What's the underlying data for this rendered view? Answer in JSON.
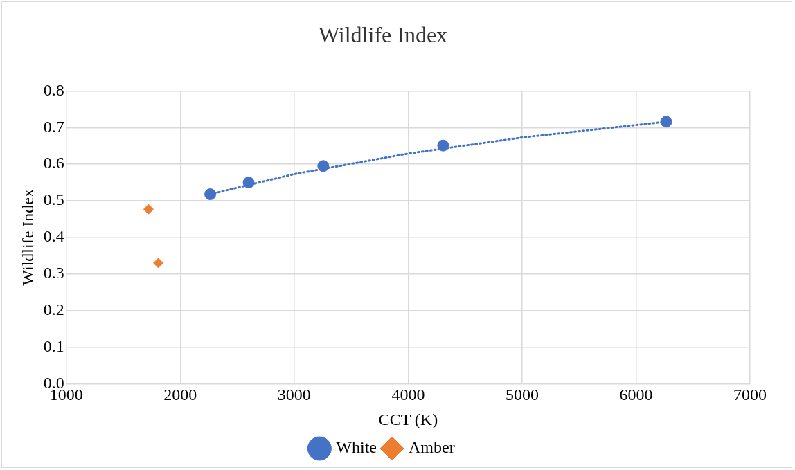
{
  "chart_data": {
    "type": "scatter",
    "title": "Wildlife Index",
    "xlabel": "CCT (K)",
    "ylabel": "Wildlife Index",
    "series": [
      {
        "name": "White",
        "color": "#4472c4",
        "marker": "circle",
        "x": [
          2263,
          2600,
          3255,
          4307,
          6265
        ],
        "values": [
          0.518,
          0.55,
          0.595,
          0.651,
          0.716
        ]
      },
      {
        "name": "Amber",
        "color": "#ed7d31",
        "marker": "diamond",
        "x": [
          1721,
          1807
        ],
        "values": [
          0.477,
          0.33
        ]
      },
      {
        "type": "line",
        "color": "#4472c4",
        "marker": "none",
        "line_style": "dotted",
        "x": [
          2263,
          3000,
          4000,
          5000,
          6265
        ],
        "values": [
          0.518,
          0.573,
          0.629,
          0.673,
          0.716
        ]
      }
    ],
    "xlim": [
      1000,
      7000
    ],
    "xticks": [
      1000,
      2000,
      3000,
      4000,
      5000,
      6000,
      7000
    ],
    "ylim": [
      0,
      0.8
    ],
    "yticks": [
      {
        "value": 0,
        "label": "0.0"
      },
      0.1,
      0.2,
      0.3,
      0.4,
      0.5,
      0.6,
      0.7,
      0.8
    ],
    "grid": true,
    "legend": "bottom"
  }
}
